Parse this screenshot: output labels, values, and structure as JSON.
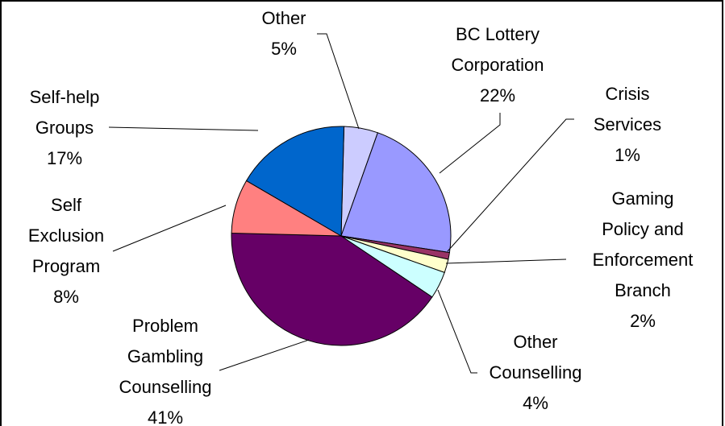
{
  "chart_data": {
    "type": "pie",
    "categories": [
      "Other",
      "BC Lottery Corporation",
      "Crisis Services",
      "Gaming Policy and Enforcement Branch",
      "Other Counselling",
      "Problem Gambling Counselling",
      "Self Exclusion Program",
      "Self-help Groups"
    ],
    "values": [
      5,
      22,
      1,
      2,
      4,
      41,
      8,
      17
    ],
    "value_labels": [
      "5%",
      "22%",
      "1%",
      "2%",
      "4%",
      "41%",
      "8%",
      "17%"
    ],
    "colors": [
      "#ccccff",
      "#9999ff",
      "#993366",
      "#ffffcc",
      "#ccffff",
      "#660066",
      "#ff8080",
      "#0066cc"
    ]
  }
}
